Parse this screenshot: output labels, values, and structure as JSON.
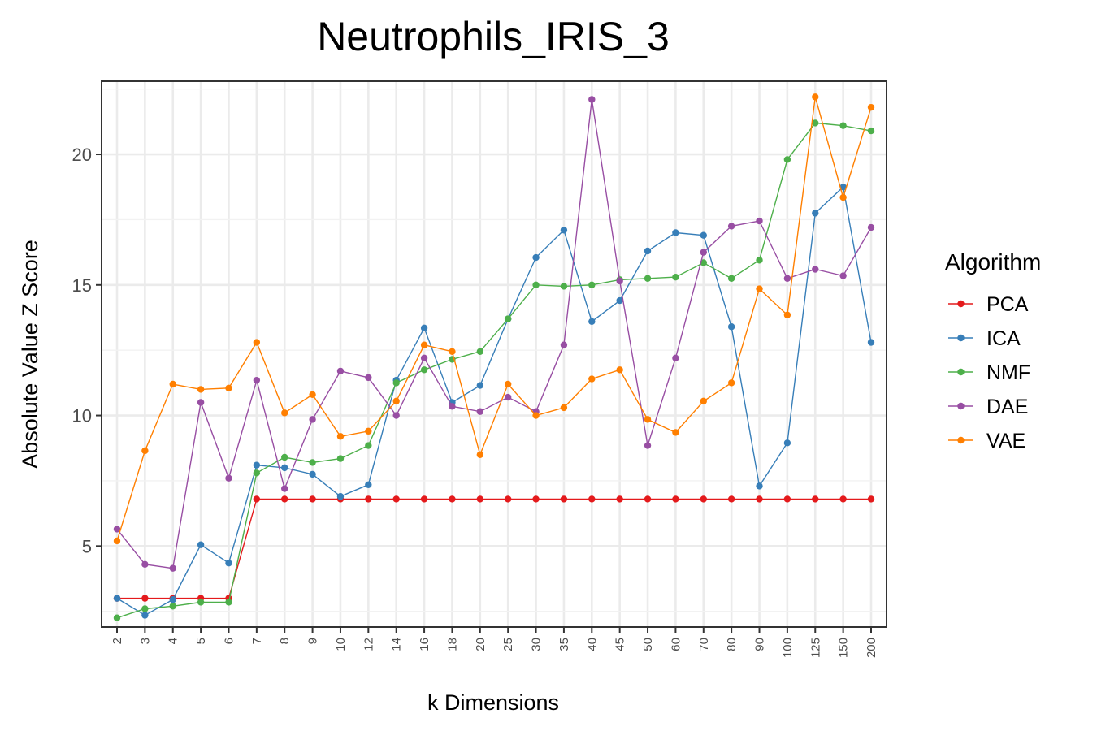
{
  "chart_data": {
    "type": "line",
    "title": "Neutrophils_IRIS_3",
    "xlabel": "k Dimensions",
    "ylabel": "Absolute Value Z Score",
    "ylim": [
      1.9,
      22.8
    ],
    "yticks": [
      5,
      10,
      15,
      20
    ],
    "grid": true,
    "legend_title": "Algorithm",
    "legend_position": "right",
    "categories": [
      "2",
      "3",
      "4",
      "5",
      "6",
      "7",
      "8",
      "9",
      "10",
      "12",
      "14",
      "16",
      "18",
      "20",
      "25",
      "30",
      "35",
      "40",
      "45",
      "50",
      "60",
      "70",
      "80",
      "90",
      "100",
      "125",
      "150",
      "200"
    ],
    "series": [
      {
        "name": "PCA",
        "color": "#e41a1c",
        "values": [
          3.0,
          3.0,
          3.0,
          3.0,
          3.0,
          6.8,
          6.8,
          6.8,
          6.8,
          6.8,
          6.8,
          6.8,
          6.8,
          6.8,
          6.8,
          6.8,
          6.8,
          6.8,
          6.8,
          6.8,
          6.8,
          6.8,
          6.8,
          6.8,
          6.8,
          6.8,
          6.8,
          6.8
        ]
      },
      {
        "name": "ICA",
        "color": "#377eb8",
        "values": [
          3.0,
          2.35,
          2.95,
          5.05,
          4.35,
          8.1,
          8.0,
          7.75,
          6.9,
          7.35,
          11.35,
          13.35,
          10.5,
          11.15,
          13.7,
          16.05,
          17.1,
          13.6,
          14.4,
          16.3,
          17.0,
          16.9,
          13.4,
          7.3,
          8.95,
          17.75,
          18.75,
          12.8
        ]
      },
      {
        "name": "NMF",
        "color": "#4daf4a",
        "values": [
          2.25,
          2.6,
          2.7,
          2.85,
          2.85,
          7.8,
          8.4,
          8.2,
          8.35,
          8.85,
          11.25,
          11.75,
          12.15,
          12.45,
          13.7,
          15.0,
          14.95,
          15.0,
          15.2,
          15.25,
          15.3,
          15.85,
          15.25,
          15.95,
          19.8,
          21.2,
          21.1,
          20.9
        ]
      },
      {
        "name": "DAE",
        "color": "#984ea3",
        "values": [
          5.65,
          4.3,
          4.15,
          10.5,
          7.6,
          11.35,
          7.2,
          9.85,
          11.7,
          11.45,
          10.0,
          12.2,
          10.35,
          10.15,
          10.7,
          10.15,
          12.7,
          22.1,
          15.15,
          8.85,
          12.2,
          16.25,
          17.25,
          17.45,
          15.25,
          15.6,
          15.35,
          17.2
        ]
      },
      {
        "name": "VAE",
        "color": "#ff7f00",
        "values": [
          5.2,
          8.65,
          11.2,
          11.0,
          11.05,
          12.8,
          10.1,
          10.8,
          9.2,
          9.4,
          10.55,
          12.7,
          12.45,
          8.5,
          11.2,
          10.0,
          10.3,
          11.4,
          11.75,
          9.85,
          9.35,
          10.55,
          11.25,
          14.85,
          13.85,
          22.2,
          18.35,
          21.8
        ]
      }
    ]
  }
}
